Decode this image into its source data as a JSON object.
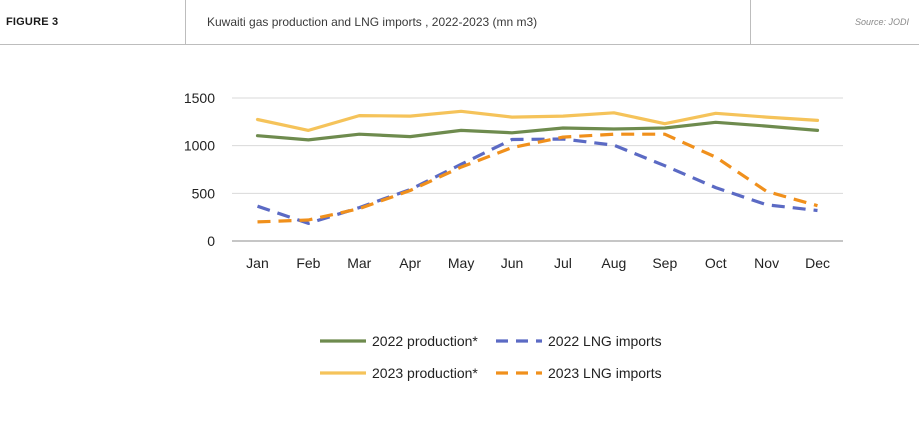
{
  "header": {
    "figure_label": "FIGURE 3",
    "title": "Kuwaiti gas production and LNG imports , 2022-2023 (mn m3)",
    "source": "Source: JODI"
  },
  "colors": {
    "prod2022": "#6e8b4e",
    "lng2022": "#5b6ac4",
    "prod2023": "#f5c35a",
    "lng2023": "#f0901c",
    "grid": "#d9d9d9",
    "axis": "#8c8c8c",
    "text": "#222222"
  },
  "chart_data": {
    "type": "line",
    "title": "Kuwaiti gas production and LNG imports , 2022-2023 (mn m3)",
    "xlabel": "",
    "ylabel": "",
    "ylim": [
      0,
      1500
    ],
    "yticks": [
      0,
      500,
      1000,
      1500
    ],
    "grid": true,
    "legend_position": "bottom-center",
    "categories": [
      "Jan",
      "Feb",
      "Mar",
      "Apr",
      "May",
      "Jun",
      "Jul",
      "Aug",
      "Sep",
      "Oct",
      "Nov",
      "Dec"
    ],
    "series": [
      {
        "name": "2022 production*",
        "color_key": "prod2022",
        "style": "solid",
        "values": [
          1105,
          1060,
          1120,
          1095,
          1160,
          1135,
          1185,
          1175,
          1185,
          1245,
          1205,
          1160
        ]
      },
      {
        "name": "2022 LNG imports",
        "color_key": "lng2022",
        "style": "dashed",
        "values": [
          365,
          185,
          350,
          540,
          805,
          1065,
          1070,
          1005,
          790,
          560,
          380,
          320
        ]
      },
      {
        "name": "2023 production*",
        "color_key": "prod2023",
        "style": "solid",
        "values": [
          1275,
          1160,
          1315,
          1310,
          1360,
          1300,
          1310,
          1345,
          1230,
          1340,
          1300,
          1265
        ]
      },
      {
        "name": "2023 LNG imports",
        "color_key": "lng2023",
        "style": "dashed",
        "values": [
          200,
          220,
          340,
          530,
          775,
          980,
          1090,
          1120,
          1120,
          880,
          520,
          370
        ]
      }
    ]
  }
}
